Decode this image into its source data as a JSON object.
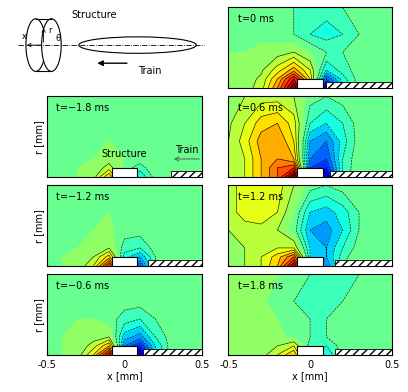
{
  "grid": {
    "x": [
      -0.5,
      -0.4,
      -0.3,
      -0.2,
      -0.1,
      0.0,
      0.1,
      0.2,
      0.3,
      0.4,
      0.5
    ],
    "r": [
      0.0,
      0.05,
      0.1,
      0.2,
      0.3,
      0.45
    ]
  },
  "geometry": {
    "structure": {
      "x": [
        -0.08,
        0.08
      ],
      "r": [
        0.0,
        0.05
      ]
    },
    "train_height": 0.03
  },
  "schematic": {
    "labels": [
      "Structure",
      "Train",
      "x",
      "r",
      "θ"
    ]
  },
  "chart_data": [
    {
      "type": "contour",
      "label": "t=−1.8 ms",
      "annotations": [
        "Structure",
        "Train"
      ],
      "train_nose": 0.3,
      "ylabel": "r [mm]",
      "xlim": [
        -0.5,
        0.5
      ],
      "ylim": [
        0,
        0.45
      ],
      "xticks": [
        -0.5,
        0,
        0.5
      ],
      "yticks": [],
      "tick_labels": false,
      "clim": [
        -1,
        1
      ],
      "cells": [
        [
          0,
          0,
          0,
          0.05,
          0.4,
          -0.1,
          -0.3,
          -0.05,
          0,
          0,
          0
        ],
        [
          0,
          0,
          0,
          0.02,
          0.15,
          -0.05,
          -0.15,
          -0.02,
          0,
          0,
          0
        ],
        [
          0,
          0,
          0,
          0,
          0.05,
          0,
          -0.05,
          0,
          0,
          0,
          0
        ],
        [
          0,
          0,
          0,
          0,
          0,
          0,
          0,
          0,
          0,
          0,
          0
        ],
        [
          0,
          0,
          0,
          0,
          0,
          0,
          0,
          0,
          0,
          0,
          0
        ],
        [
          0,
          0,
          0,
          0,
          0,
          0,
          0,
          0,
          0,
          0,
          0
        ]
      ]
    },
    {
      "type": "contour",
      "label": "t=−1.2 ms",
      "train_nose": 0.15,
      "ylabel": "r [mm]",
      "xlim": [
        -0.5,
        0.5
      ],
      "ylim": [
        0,
        0.45
      ],
      "xticks": [
        -0.5,
        0,
        0.5
      ],
      "yticks": [],
      "tick_labels": false,
      "clim": [
        -1,
        1
      ],
      "cells": [
        [
          0,
          0,
          0.02,
          0.2,
          0.7,
          -0.3,
          -0.6,
          -0.1,
          0,
          0,
          0
        ],
        [
          0,
          0,
          0.01,
          0.1,
          0.35,
          -0.25,
          -0.4,
          -0.1,
          0,
          0,
          0
        ],
        [
          0,
          0,
          0,
          0.03,
          0.1,
          -0.15,
          -0.2,
          -0.05,
          0,
          0,
          0
        ],
        [
          0,
          0,
          0,
          0,
          0.02,
          -0.05,
          -0.05,
          -0.02,
          0,
          0,
          0
        ],
        [
          0,
          0,
          0,
          0,
          0,
          0,
          0,
          0,
          0,
          0,
          0
        ],
        [
          0,
          0,
          0,
          0,
          0,
          0,
          0,
          0,
          0,
          0,
          0
        ]
      ]
    },
    {
      "type": "contour",
      "label": "t=−0.6 ms",
      "train_nose": 0.12,
      "xlabel": "x [mm]",
      "ylabel": "r [mm]",
      "xlim": [
        -0.5,
        0.5
      ],
      "ylim": [
        0,
        0.45
      ],
      "xticks": [
        -0.5,
        0,
        0.5
      ],
      "yticks": [],
      "tick_labels": "x",
      "clim": [
        -1,
        1
      ],
      "cells": [
        [
          0,
          0,
          0.05,
          0.3,
          0.8,
          -0.6,
          -0.9,
          -0.3,
          -0.05,
          0,
          0
        ],
        [
          0,
          0,
          0.02,
          0.15,
          0.4,
          -0.5,
          -0.7,
          -0.3,
          -0.05,
          0,
          0
        ],
        [
          0,
          0,
          0.01,
          0.05,
          0.1,
          -0.35,
          -0.45,
          -0.2,
          -0.05,
          0,
          0
        ],
        [
          0,
          0,
          0,
          0,
          -0.05,
          -0.15,
          -0.2,
          -0.1,
          -0.02,
          0,
          0
        ],
        [
          0,
          0,
          0,
          0,
          -0.02,
          -0.05,
          -0.05,
          -0.03,
          0,
          0,
          0
        ],
        [
          0,
          0,
          0,
          0,
          0,
          0,
          0,
          0,
          0,
          0,
          0
        ]
      ]
    },
    {
      "type": "contour",
      "label": "t=0 ms",
      "train_nose": 0.1,
      "xlim": [
        -0.5,
        0.5
      ],
      "ylim": [
        0,
        0.45
      ],
      "xticks": [
        -0.5,
        0,
        0.5
      ],
      "yticks": [],
      "tick_labels": false,
      "clim": [
        -1,
        1
      ],
      "cells": [
        [
          0.02,
          0.05,
          0.15,
          0.5,
          1.0,
          0.3,
          -0.9,
          -0.3,
          -0.05,
          0,
          0
        ],
        [
          0.02,
          0.05,
          0.12,
          0.4,
          0.8,
          0.3,
          -0.6,
          -0.25,
          -0.05,
          0,
          0
        ],
        [
          0.01,
          0.03,
          0.08,
          0.25,
          0.45,
          0.2,
          -0.3,
          -0.15,
          -0.05,
          0,
          0
        ],
        [
          0,
          0,
          0.02,
          0.05,
          0.1,
          0,
          -0.1,
          -0.1,
          -0.05,
          0,
          0
        ],
        [
          0,
          0,
          -0.02,
          -0.05,
          -0.1,
          -0.2,
          -0.25,
          -0.2,
          -0.1,
          -0.03,
          0
        ],
        [
          0,
          0,
          -0.02,
          -0.05,
          -0.1,
          -0.15,
          -0.15,
          -0.1,
          -0.05,
          -0.02,
          0
        ]
      ]
    },
    {
      "type": "contour",
      "label": "t=0.6 ms",
      "train_nose": 0.12,
      "xlim": [
        -0.5,
        0.5
      ],
      "ylim": [
        0,
        0.45
      ],
      "xticks": [
        -0.5,
        0,
        0.5
      ],
      "yticks": [],
      "tick_labels": false,
      "clim": [
        -1,
        1
      ],
      "cells": [
        [
          0.1,
          0.2,
          0.4,
          0.6,
          1.0,
          -0.8,
          -0.9,
          -0.2,
          0,
          0,
          0
        ],
        [
          0.1,
          0.2,
          0.4,
          0.6,
          0.7,
          -0.6,
          -0.7,
          -0.2,
          0,
          0,
          0
        ],
        [
          0.1,
          0.2,
          0.4,
          0.5,
          0.4,
          -0.5,
          -0.6,
          -0.2,
          -0.02,
          0,
          0
        ],
        [
          0.1,
          0.25,
          0.45,
          0.5,
          0.3,
          -0.4,
          -0.5,
          -0.25,
          -0.05,
          0,
          0
        ],
        [
          0.08,
          0.2,
          0.35,
          0.4,
          0.25,
          -0.2,
          -0.3,
          -0.2,
          -0.05,
          0,
          0
        ],
        [
          0.05,
          0.1,
          0.15,
          0.15,
          0.1,
          -0.05,
          -0.1,
          -0.05,
          0,
          0,
          0
        ]
      ]
    },
    {
      "type": "contour",
      "label": "t=1.2 ms",
      "train_nose": 0.15,
      "xlim": [
        -0.5,
        0.5
      ],
      "ylim": [
        0,
        0.45
      ],
      "xticks": [
        -0.5,
        0,
        0.5
      ],
      "yticks": [],
      "tick_labels": false,
      "clim": [
        -1,
        1
      ],
      "cells": [
        [
          0.05,
          0.1,
          0.2,
          0.4,
          0.9,
          -0.3,
          -0.5,
          -0.1,
          0,
          0,
          0
        ],
        [
          0.05,
          0.1,
          0.2,
          0.35,
          0.6,
          -0.3,
          -0.4,
          -0.15,
          0,
          0,
          0
        ],
        [
          0.05,
          0.1,
          0.15,
          0.2,
          0.2,
          -0.3,
          -0.4,
          -0.2,
          -0.05,
          0,
          0
        ],
        [
          0.1,
          0.15,
          0.15,
          0.1,
          -0.05,
          -0.4,
          -0.45,
          -0.3,
          -0.1,
          -0.02,
          0
        ],
        [
          0.15,
          0.25,
          0.3,
          0.2,
          0,
          -0.3,
          -0.35,
          -0.25,
          -0.1,
          -0.02,
          0
        ],
        [
          0.15,
          0.25,
          0.3,
          0.25,
          0.1,
          -0.05,
          -0.1,
          -0.05,
          0,
          0,
          0
        ]
      ]
    },
    {
      "type": "contour",
      "label": "t=1.8 ms",
      "train_nose": 0.15,
      "xlabel": "x [mm]",
      "xlim": [
        -0.5,
        0.5
      ],
      "ylim": [
        0,
        0.45
      ],
      "xticks": [
        -0.5,
        0,
        0.5
      ],
      "yticks": [],
      "tick_labels": "x",
      "clim": [
        -1,
        1
      ],
      "cells": [
        [
          0.02,
          0.03,
          0.05,
          0.2,
          0.4,
          -0.2,
          -0.3,
          -0.05,
          0,
          0,
          0
        ],
        [
          0.02,
          0.03,
          0.05,
          0.1,
          0.2,
          -0.15,
          -0.2,
          -0.05,
          0,
          0,
          0
        ],
        [
          0.02,
          0.02,
          0.03,
          0.02,
          -0.02,
          -0.1,
          -0.1,
          -0.05,
          -0.02,
          0,
          0
        ],
        [
          0.03,
          0.05,
          0.03,
          0,
          -0.05,
          -0.1,
          -0.1,
          -0.05,
          -0.02,
          0,
          0
        ],
        [
          0.05,
          0.05,
          0.02,
          -0.05,
          -0.1,
          -0.15,
          -0.15,
          -0.1,
          -0.05,
          0,
          0
        ],
        [
          0.03,
          0.05,
          0.05,
          0,
          -0.05,
          -0.1,
          -0.15,
          -0.15,
          -0.1,
          -0.05,
          0
        ]
      ]
    }
  ]
}
